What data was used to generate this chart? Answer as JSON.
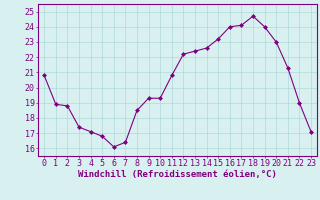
{
  "x": [
    0,
    1,
    2,
    3,
    4,
    5,
    6,
    7,
    8,
    9,
    10,
    11,
    12,
    13,
    14,
    15,
    16,
    17,
    18,
    19,
    20,
    21,
    22,
    23
  ],
  "y": [
    20.8,
    18.9,
    18.8,
    17.4,
    17.1,
    16.8,
    16.1,
    16.4,
    18.5,
    19.3,
    19.3,
    20.8,
    22.2,
    22.4,
    22.6,
    23.2,
    24.0,
    24.1,
    24.7,
    24.0,
    23.0,
    21.3,
    19.0,
    17.1
  ],
  "line_color": "#800080",
  "marker": "D",
  "marker_size": 2,
  "bg_color": "#d8f0f0",
  "grid_color": "#b0d8d8",
  "xlabel": "Windchill (Refroidissement éolien,°C)",
  "xlabel_color": "#800080",
  "xlim": [
    -0.5,
    23.5
  ],
  "ylim": [
    15.5,
    25.5
  ],
  "yticks": [
    16,
    17,
    18,
    19,
    20,
    21,
    22,
    23,
    24,
    25
  ],
  "xticks": [
    0,
    1,
    2,
    3,
    4,
    5,
    6,
    7,
    8,
    9,
    10,
    11,
    12,
    13,
    14,
    15,
    16,
    17,
    18,
    19,
    20,
    21,
    22,
    23
  ],
  "tick_color": "#800080",
  "spine_color": "#800080",
  "axis_label_fontsize": 6.5,
  "tick_fontsize": 6
}
